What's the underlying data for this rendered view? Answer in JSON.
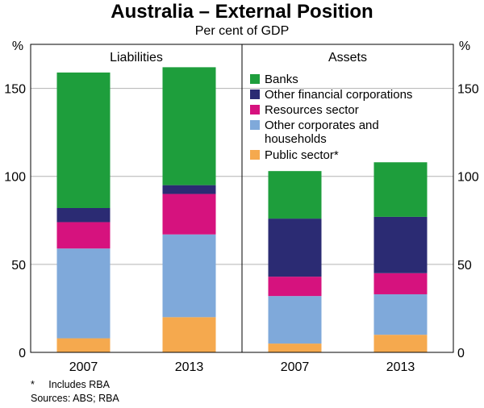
{
  "chart_data": {
    "type": "bar",
    "stacked": true,
    "title": "Australia – External Position",
    "subtitle": "Per cent of GDP",
    "yunit_left": "%",
    "yunit_right": "%",
    "ylim": [
      0,
      175
    ],
    "yticks": [
      0,
      50,
      100,
      150
    ],
    "grid": true,
    "legend_position": "top-left of Assets panel",
    "panels": [
      {
        "title": "Liabilities",
        "categories": [
          "2007",
          "2013"
        ],
        "series": [
          {
            "name": "Public sector*",
            "color": "#F5A94E",
            "values": [
              8,
              20
            ]
          },
          {
            "name": "Other corporates and households",
            "color": "#7FA9DA",
            "values": [
              51,
              47
            ]
          },
          {
            "name": "Resources sector",
            "color": "#D6127E",
            "values": [
              15,
              23
            ]
          },
          {
            "name": "Other financial corporations",
            "color": "#2B2B73",
            "values": [
              8,
              5
            ]
          },
          {
            "name": "Banks",
            "color": "#1E9E3C",
            "values": [
              77,
              67
            ]
          }
        ]
      },
      {
        "title": "Assets",
        "categories": [
          "2007",
          "2013"
        ],
        "series": [
          {
            "name": "Public sector*",
            "color": "#F5A94E",
            "values": [
              5,
              10
            ]
          },
          {
            "name": "Other corporates and households",
            "color": "#7FA9DA",
            "values": [
              27,
              23
            ]
          },
          {
            "name": "Resources sector",
            "color": "#D6127E",
            "values": [
              11,
              12
            ]
          },
          {
            "name": "Other financial corporations",
            "color": "#2B2B73",
            "values": [
              33,
              32
            ]
          },
          {
            "name": "Banks",
            "color": "#1E9E3C",
            "values": [
              27,
              31
            ]
          }
        ]
      }
    ],
    "legend": [
      {
        "label": "Banks",
        "color": "#1E9E3C"
      },
      {
        "label": "Other financial corporations",
        "color": "#2B2B73"
      },
      {
        "label": "Resources sector",
        "color": "#D6127E"
      },
      {
        "label": "Other corporates and households",
        "color": "#7FA9DA"
      },
      {
        "label": "Public sector*",
        "color": "#F5A94E"
      }
    ],
    "footnotes": [
      "*     Includes RBA",
      "Sources: ABS; RBA"
    ]
  }
}
